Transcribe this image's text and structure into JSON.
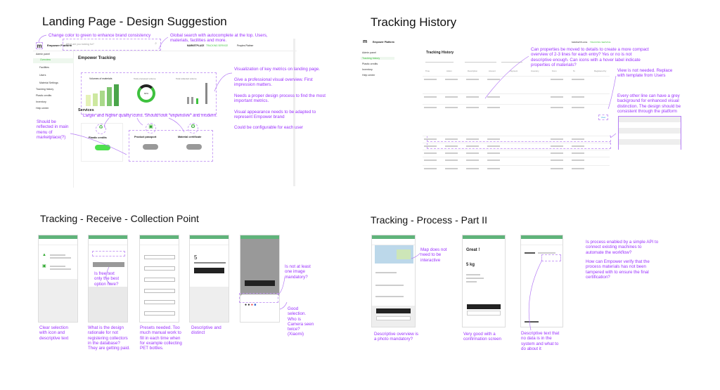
{
  "sections": {
    "landing": {
      "title": "Landing Page - Design Suggestion"
    },
    "history": {
      "title": "Tracking History"
    },
    "receive": {
      "title": "Tracking - Receive - Collection Point"
    },
    "process": {
      "title": "Tracking - Process - Part II"
    }
  },
  "landing": {
    "brand": "Empower Platform",
    "search_placeholder": "What are you looking for?",
    "nav_marketplace": "MARKETPLACE",
    "nav_tracking": "TRACKING SERVICE",
    "user": "Peoples Plattner",
    "sidebar": [
      "Admin panel",
      "Overview",
      "Facilities",
      "Users",
      "Material Settings",
      "Tracking history",
      "Plastic credits",
      "Inventory",
      "Help center"
    ],
    "page_title": "Empower Tracking",
    "cards": [
      "Volumes of materials",
      "Total processed volume",
      "Total collected volume"
    ],
    "donut_label": "60%",
    "services_title": "Services",
    "services": [
      "Plastic credits",
      "Product passport",
      "Material certificate"
    ],
    "bars": [
      35,
      40,
      50,
      60,
      68
    ],
    "notes": {
      "color": "Change color to green to enhance brand consistency",
      "search": "Global search with autocomplete at the top. Users, materials, facilities and more.",
      "metrics1": "Visualization of key metrics on landing page.",
      "metrics2": "Give a professional visual overview. First impression matters.",
      "metrics3": "Needs a proper design process to find the most important metrics.",
      "metrics4": "Visual appearance needs to be adapted to represent Empower brand",
      "metrics5": "Could be configurable for each user",
      "icons": "Larger and higher quality icons. Should look \"expensive\" and modern.",
      "menu": "Should be reflected in main menu of marketplace(?)"
    }
  },
  "history": {
    "page_title": "Tracking History",
    "sidebar": [
      "Admin panel",
      "Tracking history",
      "Plastic credits",
      "Inventory",
      "Help center"
    ],
    "columns": [
      "Time",
      "Action",
      "Description",
      "Amount",
      "Payment",
      "Inventory",
      "From",
      "To",
      "Registered by"
    ],
    "view_label": "View",
    "notes": {
      "compact": "Can properties be moved to details to create a more compact overview of 2-3 lines for each entry? Yes or no is not descriptive enough. Can icons with a hover label indicate properties of materials?",
      "view": "View is not needed. Replace with template from Users",
      "grey": "Every other line can have a grey background for enhanced visual distinction. The design should be consistent through the platform"
    }
  },
  "receive": {
    "notes": [
      "Clear selection with icon and descriptive text",
      "What is the design rationale for not registering collectors in the database? They are getting paid.",
      "Presets needed. Too much manual work to fill in each time when for example collecting PET bottles.",
      "Descriptive and distinct",
      "Good selection. Who is Camera seen twice? (Xiaomi)"
    ],
    "free_text_note": "Is free text only the best option here?",
    "image_note": "Is not at least one image mandatory?",
    "weight_value": "5"
  },
  "process": {
    "great": "Great !",
    "processed": "5 kg",
    "notes": {
      "map": "Map does not need to be interactive",
      "overview": "Descriptive overview is a photo mandatory?",
      "confirm": "Very good with a confirmation screen",
      "nodata": "Descriptive text that no data is in the system and what to do about it",
      "api": "Is process enabled by a simple API to connect existing machines to automate the  workflow?",
      "verify": "How can Empower verify that the process materials has not been tampered with to ensure the final certification?"
    }
  },
  "colors": {
    "annotation": "#9b30ff",
    "brand_green": "#3ec13e",
    "status_bar": "#5fb37a"
  }
}
